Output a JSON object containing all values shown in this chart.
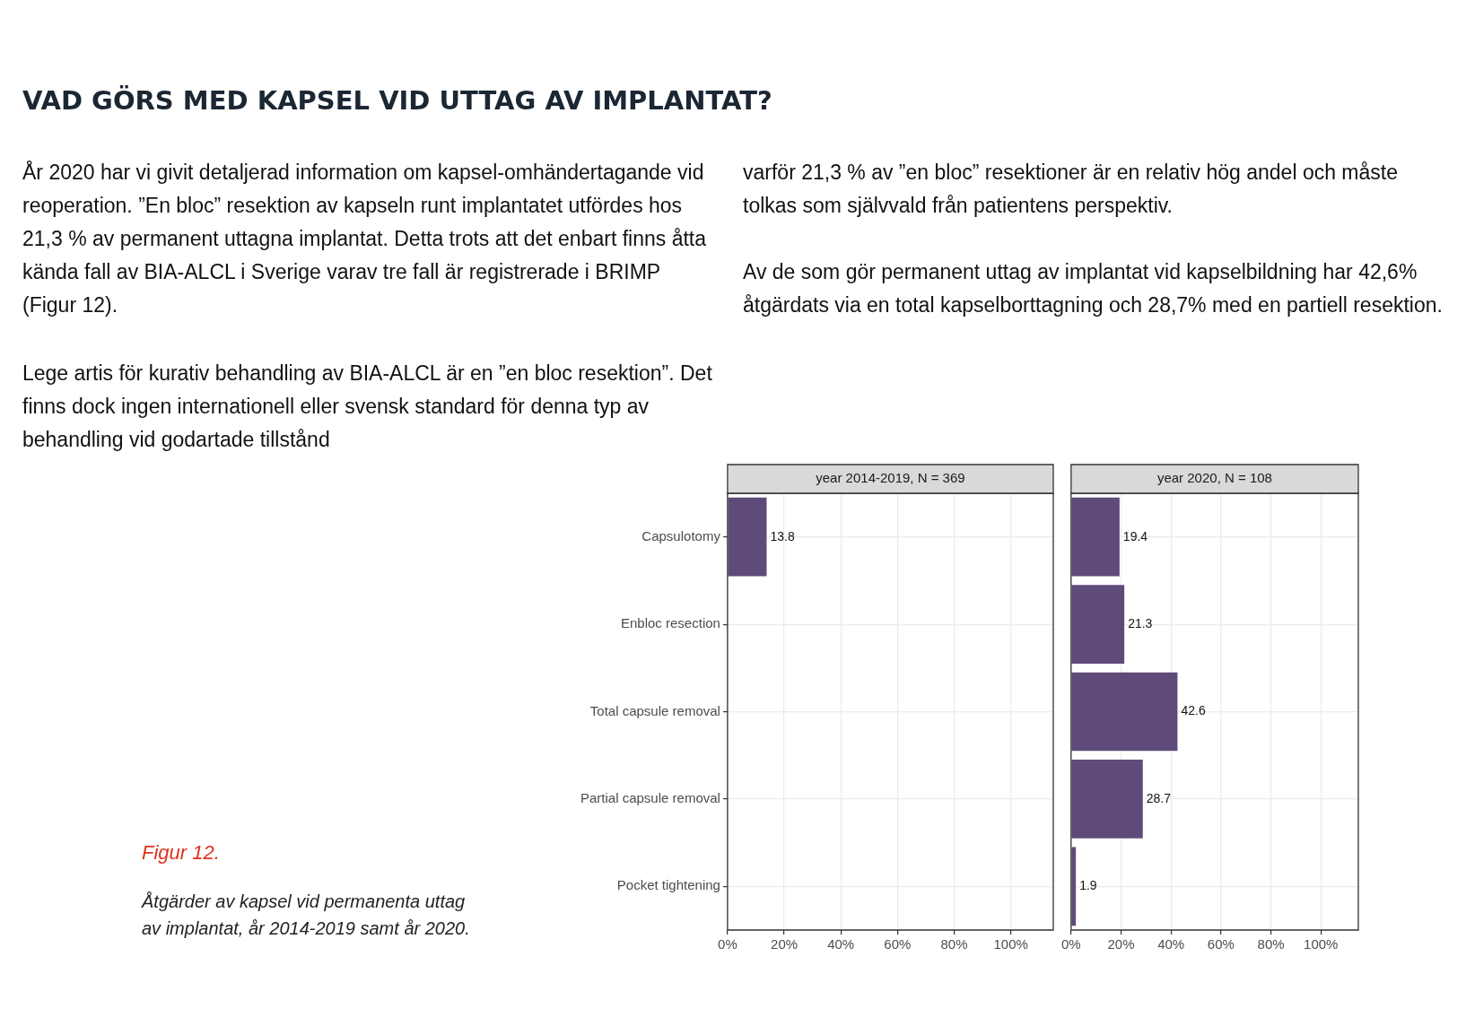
{
  "chart_data": [
    {
      "type": "bar",
      "orientation": "horizontal",
      "title": "year 2014-2019, N = 369",
      "categories": [
        "Capsulotomy",
        "Enbloc resection",
        "Total capsule removal",
        "Partial capsule removal",
        "Pocket tightening"
      ],
      "values": [
        13.8,
        null,
        null,
        null,
        null
      ],
      "color": "#5e4b7a",
      "data_labels": true,
      "xlim": [
        0,
        115
      ],
      "xticks": [
        {
          "value": 0,
          "label": "0%"
        },
        {
          "value": 20,
          "label": "20%"
        },
        {
          "value": 40,
          "label": "40%"
        },
        {
          "value": 60,
          "label": "60%"
        },
        {
          "value": 80,
          "label": "80%"
        },
        {
          "value": 100,
          "label": "100%"
        }
      ],
      "grid": true,
      "legend": false,
      "annotations": [
        "VAD GÖRS MED KAPSEL VID UTTAG AV IMPLANTAT?",
        "År 2020 har vi givit detaljerad information om kapsel-omhändertagande vid reoperation. ”En bloc” resektion av kapseln runt implantatet utfördes hos 21,3 % av permanent uttagna implantat. Detta trots att det enbart finns åtta kända fall av BIA-ALCL i Sverige varav tre fall är registrerade i BRIMP (Figur 12).",
        "Lege artis för kurativ behandling av BIA-ALCL är en ”en bloc resektion”. Det finns dock ingen internationell eller svensk standard för denna typ av behandling vid godartade tillstånd",
        "varför 21,3 % av ”en bloc” resektioner är en relativ hög andel och måste tolkas som självvald från patientens perspektiv.",
        "Av de som gör permanent uttag av implantat vid kapselbildning har 42,6% åtgärdats via en total kapselborttagning och 28,7% med en partiell resektion.",
        "Figur 12.",
        "Åtgärder av kapsel vid permanenta uttag av implantat, år 2014-2019 samt år 2020."
      ]
    },
    {
      "type": "bar",
      "orientation": "horizontal",
      "title": "year 2020, N = 108",
      "categories": [
        null,
        null,
        null,
        null,
        null
      ],
      "values": [
        19.4,
        21.3,
        42.6,
        28.7,
        1.9
      ],
      "color": "#5e4b7a",
      "data_labels": true,
      "xlim": [
        0,
        115
      ],
      "xticks": [
        {
          "value": 0,
          "label": "0%"
        },
        {
          "value": 20,
          "label": "20%"
        },
        {
          "value": 40,
          "label": "40%"
        },
        {
          "value": 60,
          "label": "60%"
        },
        {
          "value": 80,
          "label": "80%"
        },
        {
          "value": 100,
          "label": "100%"
        }
      ],
      "grid": true,
      "legend": false,
      "tick_labels": "x"
    }
  ]
}
